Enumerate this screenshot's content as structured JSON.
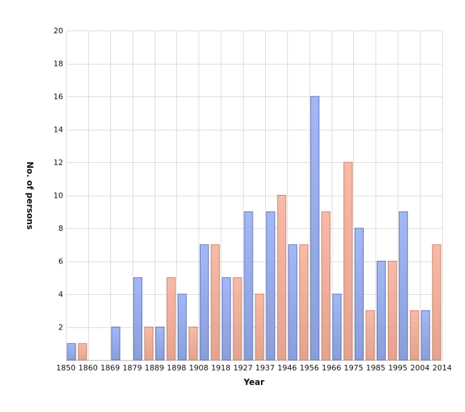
{
  "chart_data": {
    "type": "bar",
    "xlabel": "Year",
    "ylabel": "No. of persons",
    "ylim": [
      0,
      20
    ],
    "yticks": [
      2,
      4,
      6,
      8,
      10,
      12,
      14,
      16,
      18,
      20
    ],
    "grid": true,
    "x_tick_labels": [
      "1850",
      "1860",
      "1869",
      "1879",
      "1889",
      "1898",
      "1908",
      "1918",
      "1927",
      "1937",
      "1946",
      "1956",
      "1966",
      "1975",
      "1985",
      "1995",
      "2004",
      "2014"
    ],
    "series_colors": [
      "#98aeea",
      "#f2b09c"
    ],
    "bars": [
      {
        "series": 0,
        "value": 1
      },
      {
        "series": 1,
        "value": 1
      },
      {
        "series": 0,
        "value": 0
      },
      {
        "series": 1,
        "value": 0
      },
      {
        "series": 0,
        "value": 2
      },
      {
        "series": 1,
        "value": 0
      },
      {
        "series": 0,
        "value": 5
      },
      {
        "series": 1,
        "value": 2
      },
      {
        "series": 0,
        "value": 2
      },
      {
        "series": 1,
        "value": 5
      },
      {
        "series": 0,
        "value": 4
      },
      {
        "series": 1,
        "value": 2
      },
      {
        "series": 0,
        "value": 7
      },
      {
        "series": 1,
        "value": 7
      },
      {
        "series": 0,
        "value": 5
      },
      {
        "series": 1,
        "value": 5
      },
      {
        "series": 0,
        "value": 9
      },
      {
        "series": 1,
        "value": 4
      },
      {
        "series": 0,
        "value": 9
      },
      {
        "series": 1,
        "value": 10
      },
      {
        "series": 0,
        "value": 7
      },
      {
        "series": 1,
        "value": 7
      },
      {
        "series": 0,
        "value": 16
      },
      {
        "series": 1,
        "value": 9
      },
      {
        "series": 0,
        "value": 4
      },
      {
        "series": 1,
        "value": 12
      },
      {
        "series": 0,
        "value": 8
      },
      {
        "series": 1,
        "value": 3
      },
      {
        "series": 0,
        "value": 6
      },
      {
        "series": 1,
        "value": 6
      },
      {
        "series": 0,
        "value": 9
      },
      {
        "series": 1,
        "value": 3
      },
      {
        "series": 0,
        "value": 3
      },
      {
        "series": 1,
        "value": 7
      }
    ]
  }
}
